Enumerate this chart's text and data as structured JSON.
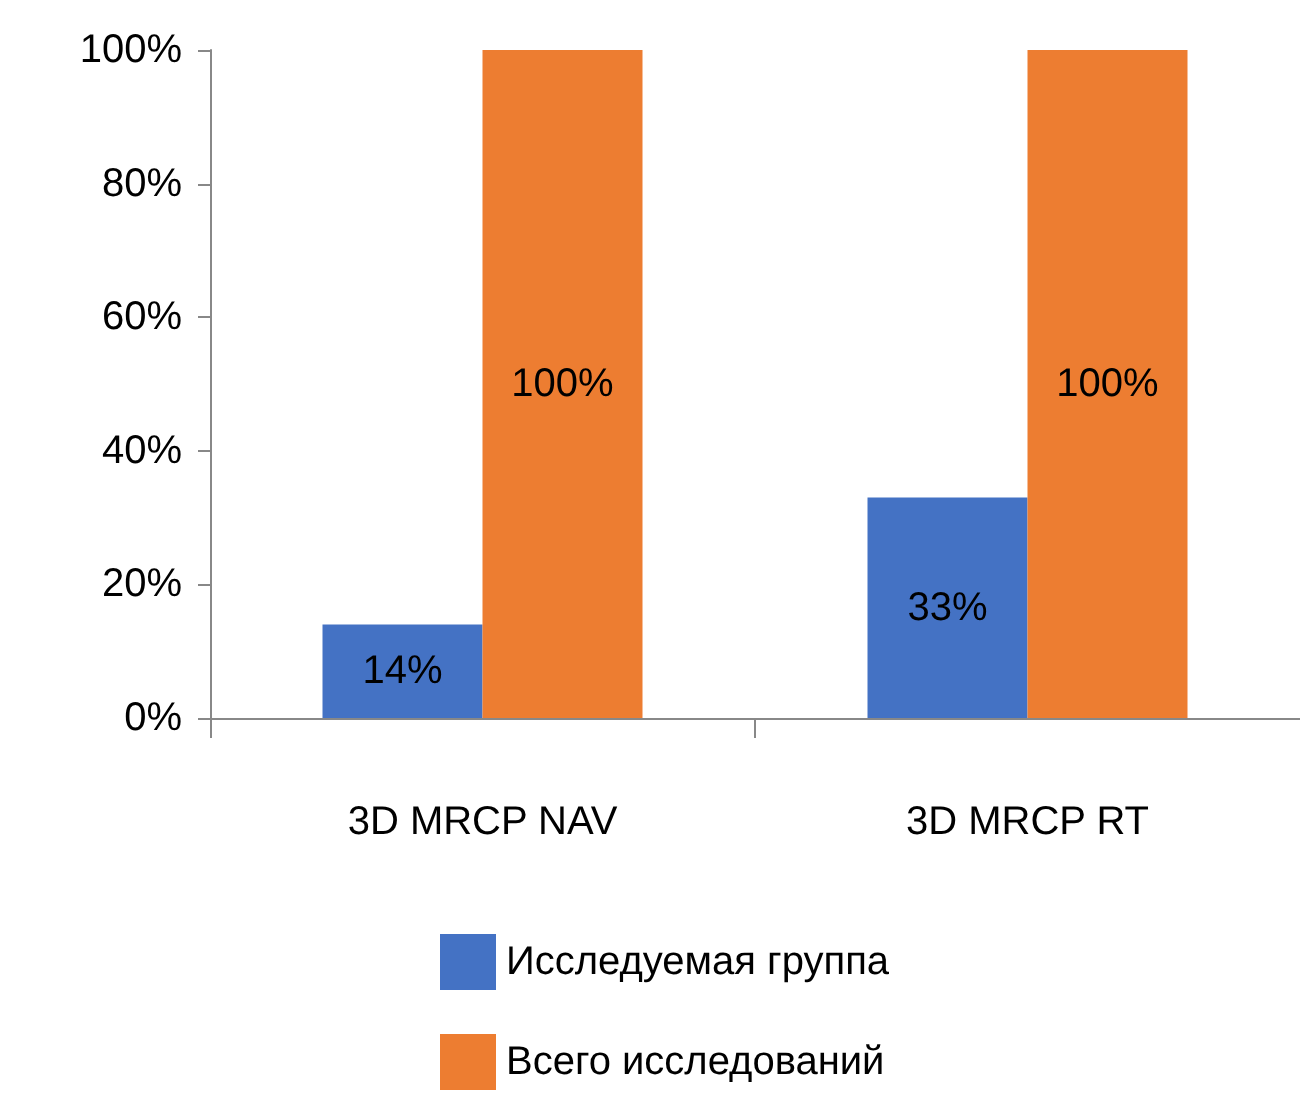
{
  "chart_data": {
    "type": "bar",
    "categories": [
      "3D MRCP NAV",
      "3D MRCP RT"
    ],
    "series": [
      {
        "name": "Исследуемая группа",
        "color": "#4472c4",
        "values": [
          14,
          33
        ],
        "value_labels": [
          "14%",
          "33%"
        ]
      },
      {
        "name": "Всего исследований",
        "color": "#ed7d31",
        "values": [
          100,
          100
        ],
        "value_labels": [
          "100%",
          "100%"
        ]
      }
    ],
    "ylim": [
      0,
      100
    ],
    "yticks": [
      {
        "value": 0,
        "label": "0%"
      },
      {
        "value": 20,
        "label": "20%"
      },
      {
        "value": 40,
        "label": "40%"
      },
      {
        "value": 60,
        "label": "60%"
      },
      {
        "value": 80,
        "label": "80%"
      },
      {
        "value": 100,
        "label": "100%"
      }
    ],
    "grid": false,
    "legend": "bottom"
  }
}
